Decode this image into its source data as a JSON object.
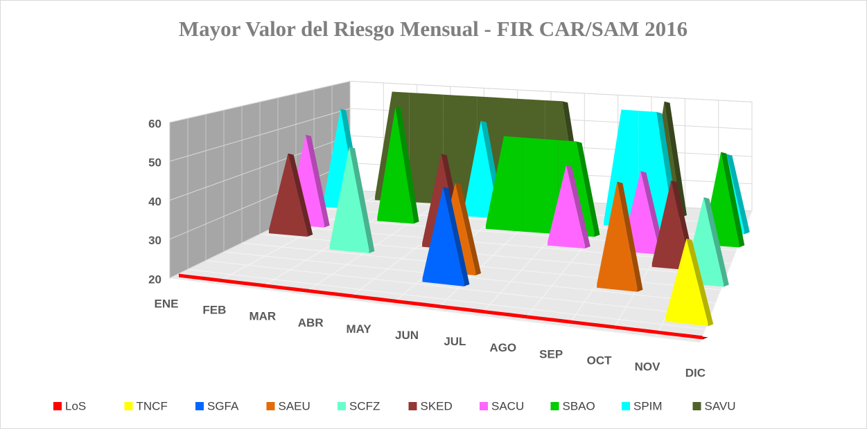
{
  "chart_data": {
    "type": "area3d",
    "title": "Mayor Valor del Riesgo Mensual - FIR CAR/SAM 2016",
    "categories": [
      "ENE",
      "FEB",
      "MAR",
      "ABR",
      "MAY",
      "JUN",
      "JUL",
      "AGO",
      "SEP",
      "OCT",
      "NOV",
      "DIC"
    ],
    "ylim": [
      20,
      60
    ],
    "yticks": [
      20,
      30,
      40,
      50,
      60
    ],
    "grid": true,
    "legend": "bottom",
    "series": [
      {
        "name": "LoS",
        "color": "#ff0000",
        "values": [
          20,
          20,
          20,
          20,
          20,
          20,
          20,
          20,
          20,
          20,
          20,
          20
        ]
      },
      {
        "name": "TNCF",
        "color": "#ffff00",
        "values": [
          null,
          null,
          null,
          null,
          null,
          null,
          null,
          null,
          null,
          null,
          null,
          42
        ]
      },
      {
        "name": "SGFA",
        "color": "#0066ff",
        "values": [
          null,
          null,
          null,
          null,
          null,
          46,
          null,
          null,
          null,
          null,
          null,
          null
        ]
      },
      {
        "name": "SAEU",
        "color": "#e36c09",
        "values": [
          null,
          null,
          null,
          null,
          null,
          45,
          null,
          null,
          null,
          50,
          null,
          null
        ]
      },
      {
        "name": "SCFZ",
        "color": "#66ffcc",
        "values": [
          null,
          null,
          50,
          null,
          null,
          null,
          null,
          null,
          null,
          null,
          null,
          45
        ]
      },
      {
        "name": "SKED",
        "color": "#953735",
        "values": [
          44,
          null,
          null,
          null,
          48,
          null,
          null,
          null,
          null,
          null,
          46,
          null
        ]
      },
      {
        "name": "SACU",
        "color": "#ff66ff",
        "values": [
          48,
          null,
          null,
          null,
          null,
          null,
          null,
          45,
          null,
          45,
          null,
          null
        ]
      },
      {
        "name": "SBAO",
        "color": "#00cc00",
        "values": [
          null,
          null,
          57,
          null,
          null,
          50,
          50,
          50,
          null,
          null,
          null,
          50
        ]
      },
      {
        "name": "SPIM",
        "color": "#00ffff",
        "values": [
          53,
          null,
          null,
          null,
          52,
          null,
          null,
          null,
          59,
          59,
          null,
          46
        ]
      },
      {
        "name": "SAVU",
        "color": "#4f6228",
        "values": [
          null,
          58,
          58,
          58,
          58,
          58,
          58,
          null,
          null,
          60,
          null,
          null
        ]
      }
    ]
  }
}
